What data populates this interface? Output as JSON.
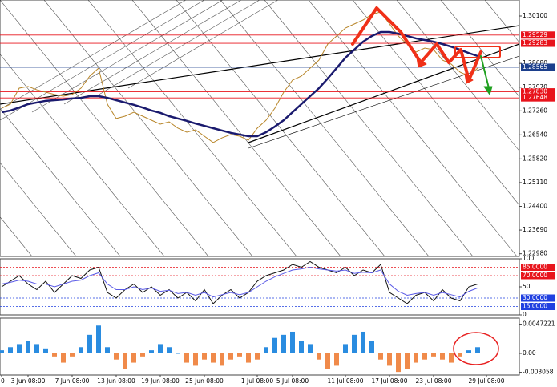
{
  "chart_data": [
    {
      "type": "line",
      "ylim": [
        1.229,
        1.3058
      ],
      "yticks": [
        {
          "value": 1.301,
          "label": "1.30100"
        },
        {
          "value": 1.2868,
          "label": "1.28680"
        },
        {
          "value": 1.2797,
          "label": "1.27970"
        },
        {
          "value": 1.2726,
          "label": "1.27260"
        },
        {
          "value": 1.2654,
          "label": "1.26540"
        },
        {
          "value": 1.2582,
          "label": "1.25820"
        },
        {
          "value": 1.2511,
          "label": "1.25110"
        },
        {
          "value": 1.244,
          "label": "1.24400"
        },
        {
          "value": 1.2369,
          "label": "1.23690"
        },
        {
          "value": 1.2298,
          "label": "1.22980"
        }
      ],
      "hlines": [
        {
          "value": 1.29529,
          "label": "1.29529",
          "color": "#e8141c"
        },
        {
          "value": 1.29283,
          "label": "1.29283",
          "color": "#e8141c"
        },
        {
          "value": 1.28565,
          "label": "1.28565",
          "color": "#1c3f8c"
        },
        {
          "value": 1.2783,
          "label": "1.27830",
          "color": "#e8141c"
        },
        {
          "value": 1.27648,
          "label": "1.27648",
          "color": "#e8141c"
        }
      ],
      "series": [
        {
          "color": "#b8862a",
          "values": [
            1.2734,
            1.2746,
            1.2794,
            1.2799,
            1.2789,
            1.2782,
            1.2775,
            1.277,
            1.2775,
            1.2794,
            1.283,
            1.2854,
            1.2746,
            1.2703,
            1.271,
            1.2722,
            1.271,
            1.2698,
            1.2686,
            1.2693,
            1.2674,
            1.2662,
            1.2669,
            1.265,
            1.2631,
            1.2645,
            1.2655,
            1.265,
            1.2638,
            1.2674,
            1.2698,
            1.2734,
            1.2782,
            1.2818,
            1.283,
            1.2854,
            1.2878,
            1.2926,
            1.295,
            1.2974,
            1.2986,
            1.2998,
            1.3015,
            1.3022,
            1.2986,
            1.295,
            1.2926,
            1.2902,
            1.2914,
            1.2909,
            1.2878,
            1.2866,
            1.2842,
            1.283,
            1.2854,
            null
          ]
        },
        {
          "color": "#1a1a6e",
          "values": [
            1.2722,
            1.2727,
            1.2736,
            1.2746,
            1.2751,
            1.2756,
            1.2758,
            1.276,
            1.2763,
            1.2765,
            1.277,
            1.277,
            1.2765,
            1.2758,
            1.2751,
            1.2744,
            1.2736,
            1.2727,
            1.272,
            1.271,
            1.2703,
            1.2696,
            1.2688,
            1.2681,
            1.2674,
            1.2667,
            1.266,
            1.2655,
            1.265,
            1.265,
            1.2662,
            1.2679,
            1.2698,
            1.2722,
            1.2746,
            1.277,
            1.2794,
            1.2823,
            1.2854,
            1.2885,
            1.2909,
            1.2933,
            1.295,
            1.2962,
            1.2962,
            1.2957,
            1.295,
            1.2943,
            1.2938,
            1.2933,
            1.2926,
            1.2918,
            1.2909,
            1.2899,
            1.289,
            null
          ]
        }
      ]
    },
    {
      "type": "line",
      "ylim": [
        0,
        100
      ],
      "yticks": [
        100,
        50,
        0
      ],
      "levels": [
        {
          "value": 85,
          "label": "85.0000",
          "color": "#e8141c"
        },
        {
          "value": 70,
          "label": "70.0000",
          "color": "#e8141c"
        },
        {
          "value": 30,
          "label": "30.0000",
          "color": "#2040e0"
        },
        {
          "value": 15,
          "label": "15.0000",
          "color": "#2040e0"
        }
      ],
      "series": [
        {
          "color": "#111111",
          "values": [
            50,
            60,
            70,
            55,
            45,
            60,
            40,
            55,
            70,
            65,
            80,
            85,
            40,
            30,
            45,
            55,
            40,
            50,
            35,
            45,
            30,
            40,
            25,
            45,
            20,
            35,
            45,
            30,
            40,
            60,
            70,
            75,
            80,
            90,
            85,
            95,
            85,
            80,
            75,
            85,
            70,
            80,
            75,
            90,
            40,
            30,
            20,
            35,
            40,
            25,
            45,
            30,
            25,
            50,
            55,
            null
          ]
        },
        {
          "color": "#5a5ae6",
          "values": [
            55,
            58,
            62,
            60,
            55,
            55,
            50,
            55,
            60,
            62,
            70,
            75,
            55,
            45,
            45,
            50,
            45,
            48,
            42,
            44,
            38,
            40,
            35,
            40,
            32,
            36,
            40,
            36,
            40,
            50,
            60,
            68,
            74,
            80,
            82,
            85,
            82,
            80,
            78,
            80,
            74,
            76,
            75,
            80,
            55,
            42,
            35,
            38,
            40,
            35,
            40,
            36,
            32,
            42,
            48,
            null
          ]
        }
      ]
    },
    {
      "type": "bar",
      "ylim": [
        -0.0035,
        0.0057
      ],
      "yticks": [
        0.0047221,
        {
          "value": 0,
          "label": "0.00"
        },
        -0.003058
      ],
      "positive_color": "#2a8ce0",
      "negative_color": "#f08a4a",
      "categories": [
        "0",
        null,
        null,
        "3 Jun 08:00",
        null,
        null,
        null,
        null,
        "7 Jun 08:00",
        null,
        null,
        null,
        null,
        "13 Jun 08:00",
        null,
        null,
        null,
        null,
        "19 Jun 08:00",
        null,
        null,
        null,
        null,
        "25 Jun 08:00",
        null,
        null,
        null,
        null,
        null,
        "1 Jul 08:00",
        null,
        null,
        null,
        "5 Jul 08:00",
        null,
        null,
        null,
        null,
        null,
        "11 Jul 08:00",
        null,
        null,
        null,
        null,
        "17 Jul 08:00",
        null,
        null,
        null,
        null,
        "23 Jul 08:00",
        null,
        null,
        null,
        null,
        null,
        "29 Jul 08:00"
      ],
      "values": [
        0.0005,
        0.001,
        0.0015,
        0.002,
        0.0015,
        0.0008,
        -0.0005,
        -0.0015,
        -0.0005,
        0.001,
        0.003,
        0.0045,
        0.001,
        -0.001,
        -0.0025,
        -0.0015,
        -0.0005,
        0.0005,
        0.0015,
        0.001,
        0,
        -0.0015,
        -0.002,
        -0.001,
        -0.0015,
        -0.002,
        -0.001,
        -0.0005,
        -0.0015,
        -0.001,
        0.001,
        0.0025,
        0.003,
        0.0035,
        0.002,
        0.0015,
        -0.001,
        -0.0025,
        -0.002,
        0.0015,
        0.003,
        0.0035,
        0.002,
        -0.001,
        -0.002,
        -0.003,
        -0.0025,
        -0.0015,
        -0.001,
        -0.0005,
        -0.001,
        -0.0015,
        -0.0005,
        0.0005,
        0.001,
        null
      ]
    }
  ]
}
